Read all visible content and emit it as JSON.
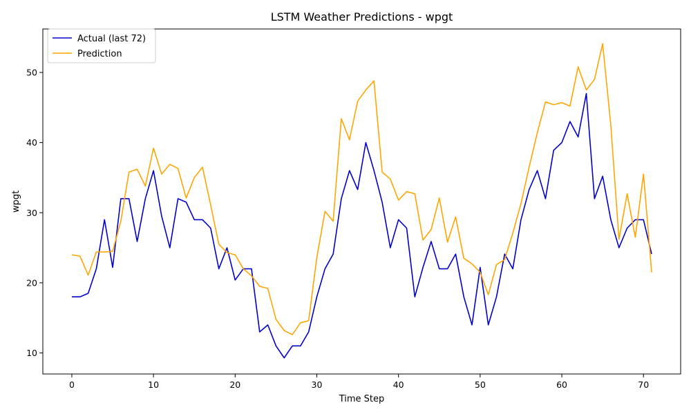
{
  "chart_data": {
    "type": "line",
    "title": "LSTM Weather Predictions - wpgt",
    "xlabel": "Time Step",
    "ylabel": "wpgt",
    "xlim": [
      -3.55,
      74.55
    ],
    "ylim": [
      7.0,
      56.2
    ],
    "xticks": [
      0,
      10,
      20,
      30,
      40,
      50,
      60,
      70
    ],
    "yticks": [
      10,
      20,
      30,
      40,
      50
    ],
    "grid": false,
    "legend_position": "top-left",
    "x": [
      0,
      1,
      2,
      3,
      4,
      5,
      6,
      7,
      8,
      9,
      10,
      11,
      12,
      13,
      14,
      15,
      16,
      17,
      18,
      19,
      20,
      21,
      22,
      23,
      24,
      25,
      26,
      27,
      28,
      29,
      30,
      31,
      32,
      33,
      34,
      35,
      36,
      37,
      38,
      39,
      40,
      41,
      42,
      43,
      44,
      45,
      46,
      47,
      48,
      49,
      50,
      51,
      52,
      53,
      54,
      55,
      56,
      57,
      58,
      59,
      60,
      61,
      62,
      63,
      64,
      65,
      66,
      67,
      68,
      69,
      70,
      71
    ],
    "series": [
      {
        "name": "Actual (last 72)",
        "color": "#0000cc",
        "values": [
          18.0,
          18.0,
          18.5,
          22.0,
          29.0,
          22.2,
          32.0,
          32.0,
          25.9,
          32.0,
          36.0,
          29.5,
          25.0,
          32.0,
          31.5,
          29.0,
          29.0,
          27.8,
          22.0,
          25.0,
          20.4,
          22.0,
          22.0,
          13.0,
          14.0,
          11.0,
          9.3,
          11.0,
          11.0,
          13.0,
          18.0,
          22.0,
          24.1,
          32.0,
          36.0,
          33.3,
          40.0,
          36.0,
          31.5,
          25.0,
          29.0,
          27.8,
          18.0,
          22.2,
          25.9,
          22.0,
          22.0,
          24.1,
          18.0,
          14.0,
          22.2,
          14.0,
          18.0,
          24.1,
          22.0,
          29.0,
          33.3,
          36.0,
          32.0,
          38.9,
          40.0,
          43.0,
          40.8,
          47.0,
          32.0,
          35.2,
          29.0,
          25.0,
          27.8,
          29.0,
          29.0,
          24.1
        ]
      },
      {
        "name": "Prediction",
        "color": "#ffa500",
        "values": [
          24.0,
          23.8,
          21.1,
          24.4,
          24.4,
          24.5,
          28.8,
          35.8,
          36.2,
          33.8,
          39.2,
          35.5,
          36.9,
          36.3,
          32.1,
          35.0,
          36.5,
          31.1,
          25.5,
          24.3,
          24.0,
          22.0,
          21.0,
          19.5,
          19.2,
          14.8,
          13.2,
          12.6,
          14.3,
          14.6,
          23.6,
          30.2,
          28.8,
          43.4,
          40.4,
          45.9,
          47.5,
          48.8,
          35.8,
          34.8,
          31.8,
          33.0,
          32.7,
          26.1,
          27.6,
          32.1,
          25.8,
          29.4,
          23.5,
          22.7,
          21.5,
          18.3,
          22.6,
          23.3,
          27.1,
          31.3,
          36.5,
          41.4,
          45.8,
          45.4,
          45.7,
          45.2,
          50.8,
          47.5,
          49.0,
          54.1,
          42.5,
          26.2,
          32.7,
          26.5,
          35.5,
          21.5
        ]
      }
    ]
  }
}
